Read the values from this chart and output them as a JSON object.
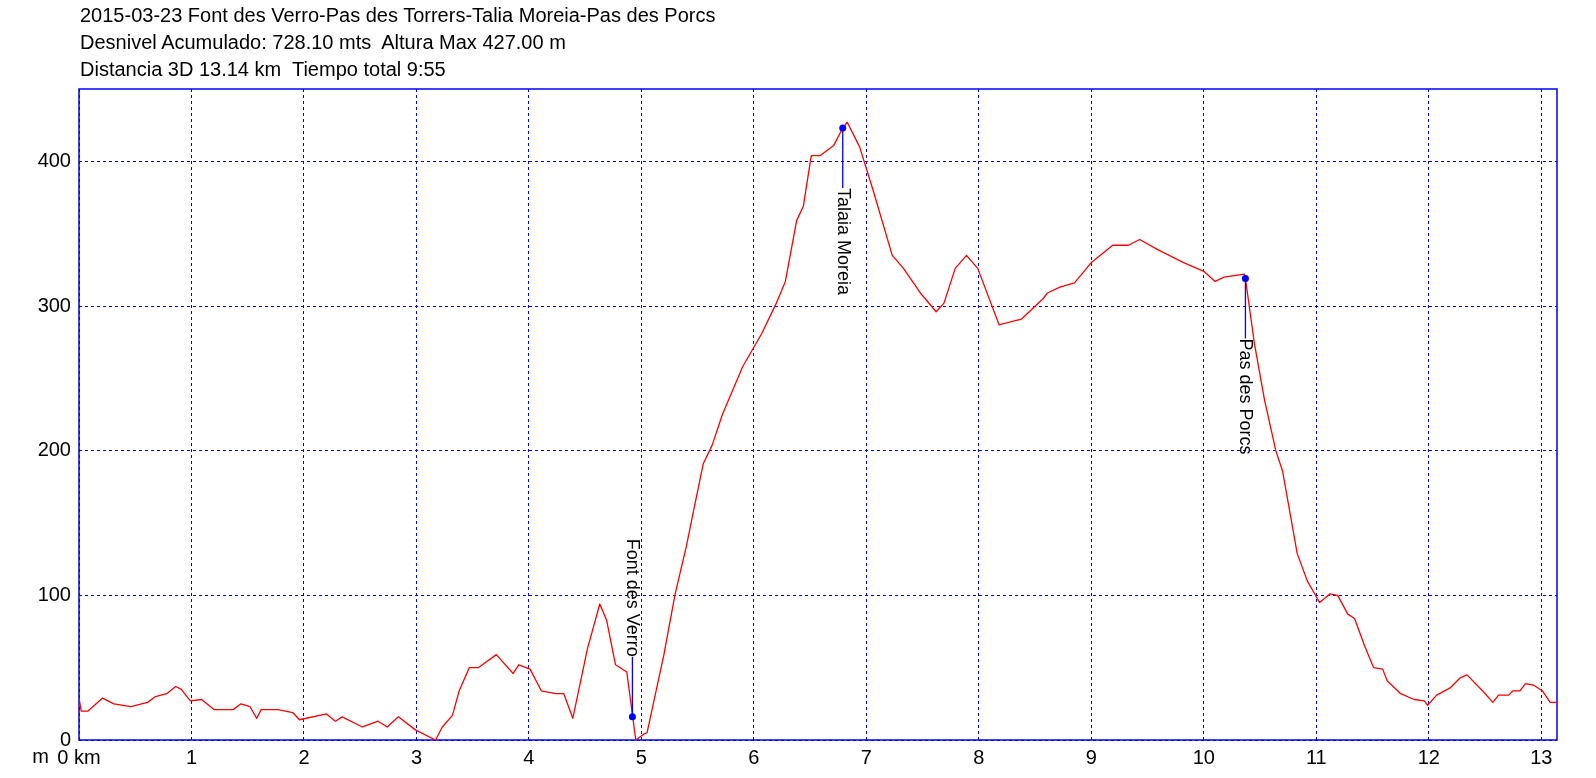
{
  "chart_data": {
    "type": "line",
    "title": "2015-03-23 Font des Verro-Pas des Torrers-Talia Moreia-Pas des Porcs",
    "subtitle": "Desnivel Acumulado: 728.10 mts  Altura Max 427.00 m\nDistancia 3D 13.14 km  Tiempo total 9:55",
    "ylabel": "m",
    "xlim": [
      0,
      13.14
    ],
    "ylim": [
      0,
      450
    ],
    "xticks": [
      {
        "value": 0,
        "label": "0 km"
      },
      1,
      2,
      3,
      4,
      5,
      6,
      7,
      8,
      9,
      10,
      11,
      12,
      13
    ],
    "yticks": [
      0,
      100,
      200,
      300,
      400
    ],
    "grid": true,
    "legend": false,
    "marker": "none",
    "line_style": "solid",
    "series": [
      {
        "color": "#ff0000",
        "x": [
          0,
          0.02,
          0.08,
          0.21,
          0.31,
          0.46,
          0.61,
          0.68,
          0.78,
          0.86,
          0.91,
          0.99,
          1.09,
          1.2,
          1.37,
          1.44,
          1.52,
          1.58,
          1.62,
          1.77,
          1.9,
          1.96,
          2.2,
          2.28,
          2.34,
          2.52,
          2.66,
          2.74,
          2.84,
          2.99,
          3.17,
          3.23,
          3.32,
          3.38,
          3.47,
          3.55,
          3.71,
          3.86,
          3.91,
          4.01,
          4.11,
          4.24,
          4.31,
          4.39,
          4.52,
          4.63,
          4.69,
          4.77,
          4.87,
          4.95,
          5.02,
          5.05,
          5.2,
          5.3,
          5.4,
          5.46,
          5.55,
          5.63,
          5.72,
          5.9,
          6.07,
          6.2,
          6.28,
          6.38,
          6.44,
          6.51,
          6.59,
          6.71,
          6.79,
          6.83,
          6.94,
          7.06,
          7.23,
          7.33,
          7.48,
          7.62,
          7.69,
          7.79,
          7.89,
          7.99,
          8.18,
          8.38,
          8.57,
          8.61,
          8.72,
          8.85,
          9.0,
          9.19,
          9.33,
          9.43,
          9.59,
          9.82,
          10.0,
          10.1,
          10.18,
          10.36,
          10.37,
          10.45,
          10.54,
          10.64,
          10.7,
          10.83,
          10.92,
          11.0,
          11.03,
          11.12,
          11.19,
          11.28,
          11.34,
          11.43,
          11.51,
          11.59,
          11.63,
          11.75,
          11.87,
          11.96,
          11.99,
          12.07,
          12.19,
          12.28,
          12.34,
          12.49,
          12.57,
          12.62,
          12.71,
          12.75,
          12.81,
          12.86,
          12.93,
          13.01,
          13.08,
          13.14
        ],
        "values": [
          29,
          20,
          20,
          29,
          25,
          23,
          26,
          30,
          32,
          37,
          35,
          27,
          28,
          21,
          21,
          25,
          23,
          15,
          21,
          21,
          19,
          14,
          18,
          13,
          16,
          9,
          13,
          9,
          16,
          7,
          0,
          9,
          17,
          34,
          50,
          50,
          59,
          46,
          52,
          49,
          34,
          32,
          32,
          15,
          63,
          94,
          83,
          52,
          47,
          0,
          4,
          5,
          59,
          101,
          134,
          157,
          191,
          204,
          225,
          258,
          281,
          302,
          317,
          359,
          369,
          404,
          404,
          411,
          423,
          427,
          410,
          380,
          335,
          326,
          309,
          296,
          302,
          326,
          335,
          326,
          287,
          291,
          305,
          309,
          313,
          316,
          330,
          342,
          342,
          346,
          339,
          330,
          324,
          317,
          320,
          322,
          319,
          274,
          235,
          200,
          186,
          129,
          110,
          99,
          95,
          101,
          100,
          87,
          84,
          65,
          50,
          49,
          41,
          32,
          28,
          27,
          24,
          31,
          36,
          43,
          45,
          33,
          26,
          31,
          31,
          34,
          34,
          39,
          38,
          34,
          26,
          26
        ]
      }
    ],
    "annotations": [
      {
        "text": "Font des Verro",
        "x": 4.92,
        "y": 16
      },
      {
        "text": "Talaia Moreia",
        "x": 6.79,
        "y": 423
      },
      {
        "text": "Pas des Porcs",
        "x": 10.37,
        "y": 319
      }
    ]
  }
}
